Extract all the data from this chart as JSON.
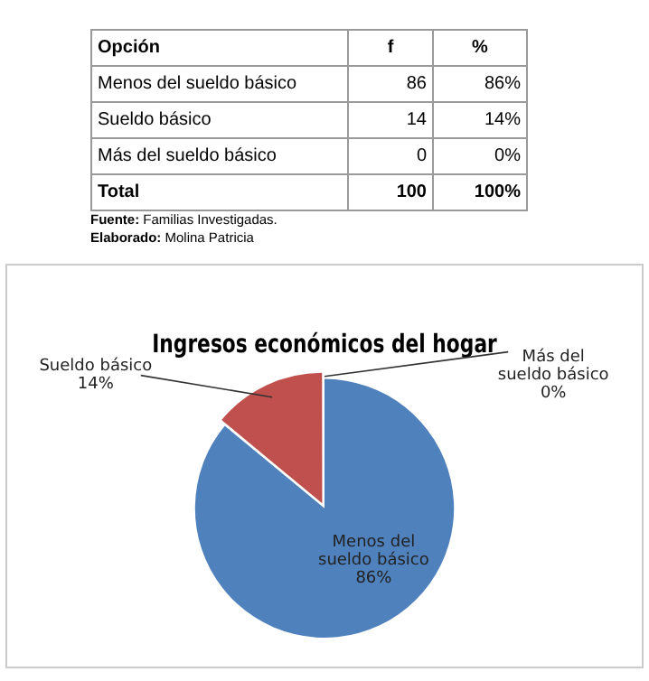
{
  "chart_data": {
    "type": "pie",
    "title": "Ingresos económicos del hogar",
    "categories": [
      "Menos del sueldo básico",
      "Sueldo básico",
      "Más del sueldo básico"
    ],
    "values": [
      86,
      14,
      0
    ],
    "colors": [
      "#4f81bd",
      "#c0504d",
      "#9bbb59"
    ],
    "value_labels": [
      "86%",
      "14%",
      "0%"
    ],
    "legend": false,
    "annotations": [
      "Opción",
      "f",
      "%",
      "Menos del sueldo básico",
      "86",
      "86%",
      "Sueldo básico",
      "14",
      "14%",
      "Más del sueldo básico",
      "0",
      "0%",
      "Total",
      "100",
      "100%",
      "Fuente: Familias Investigadas.",
      "Elaborado: Molina Patricia"
    ]
  }
}
